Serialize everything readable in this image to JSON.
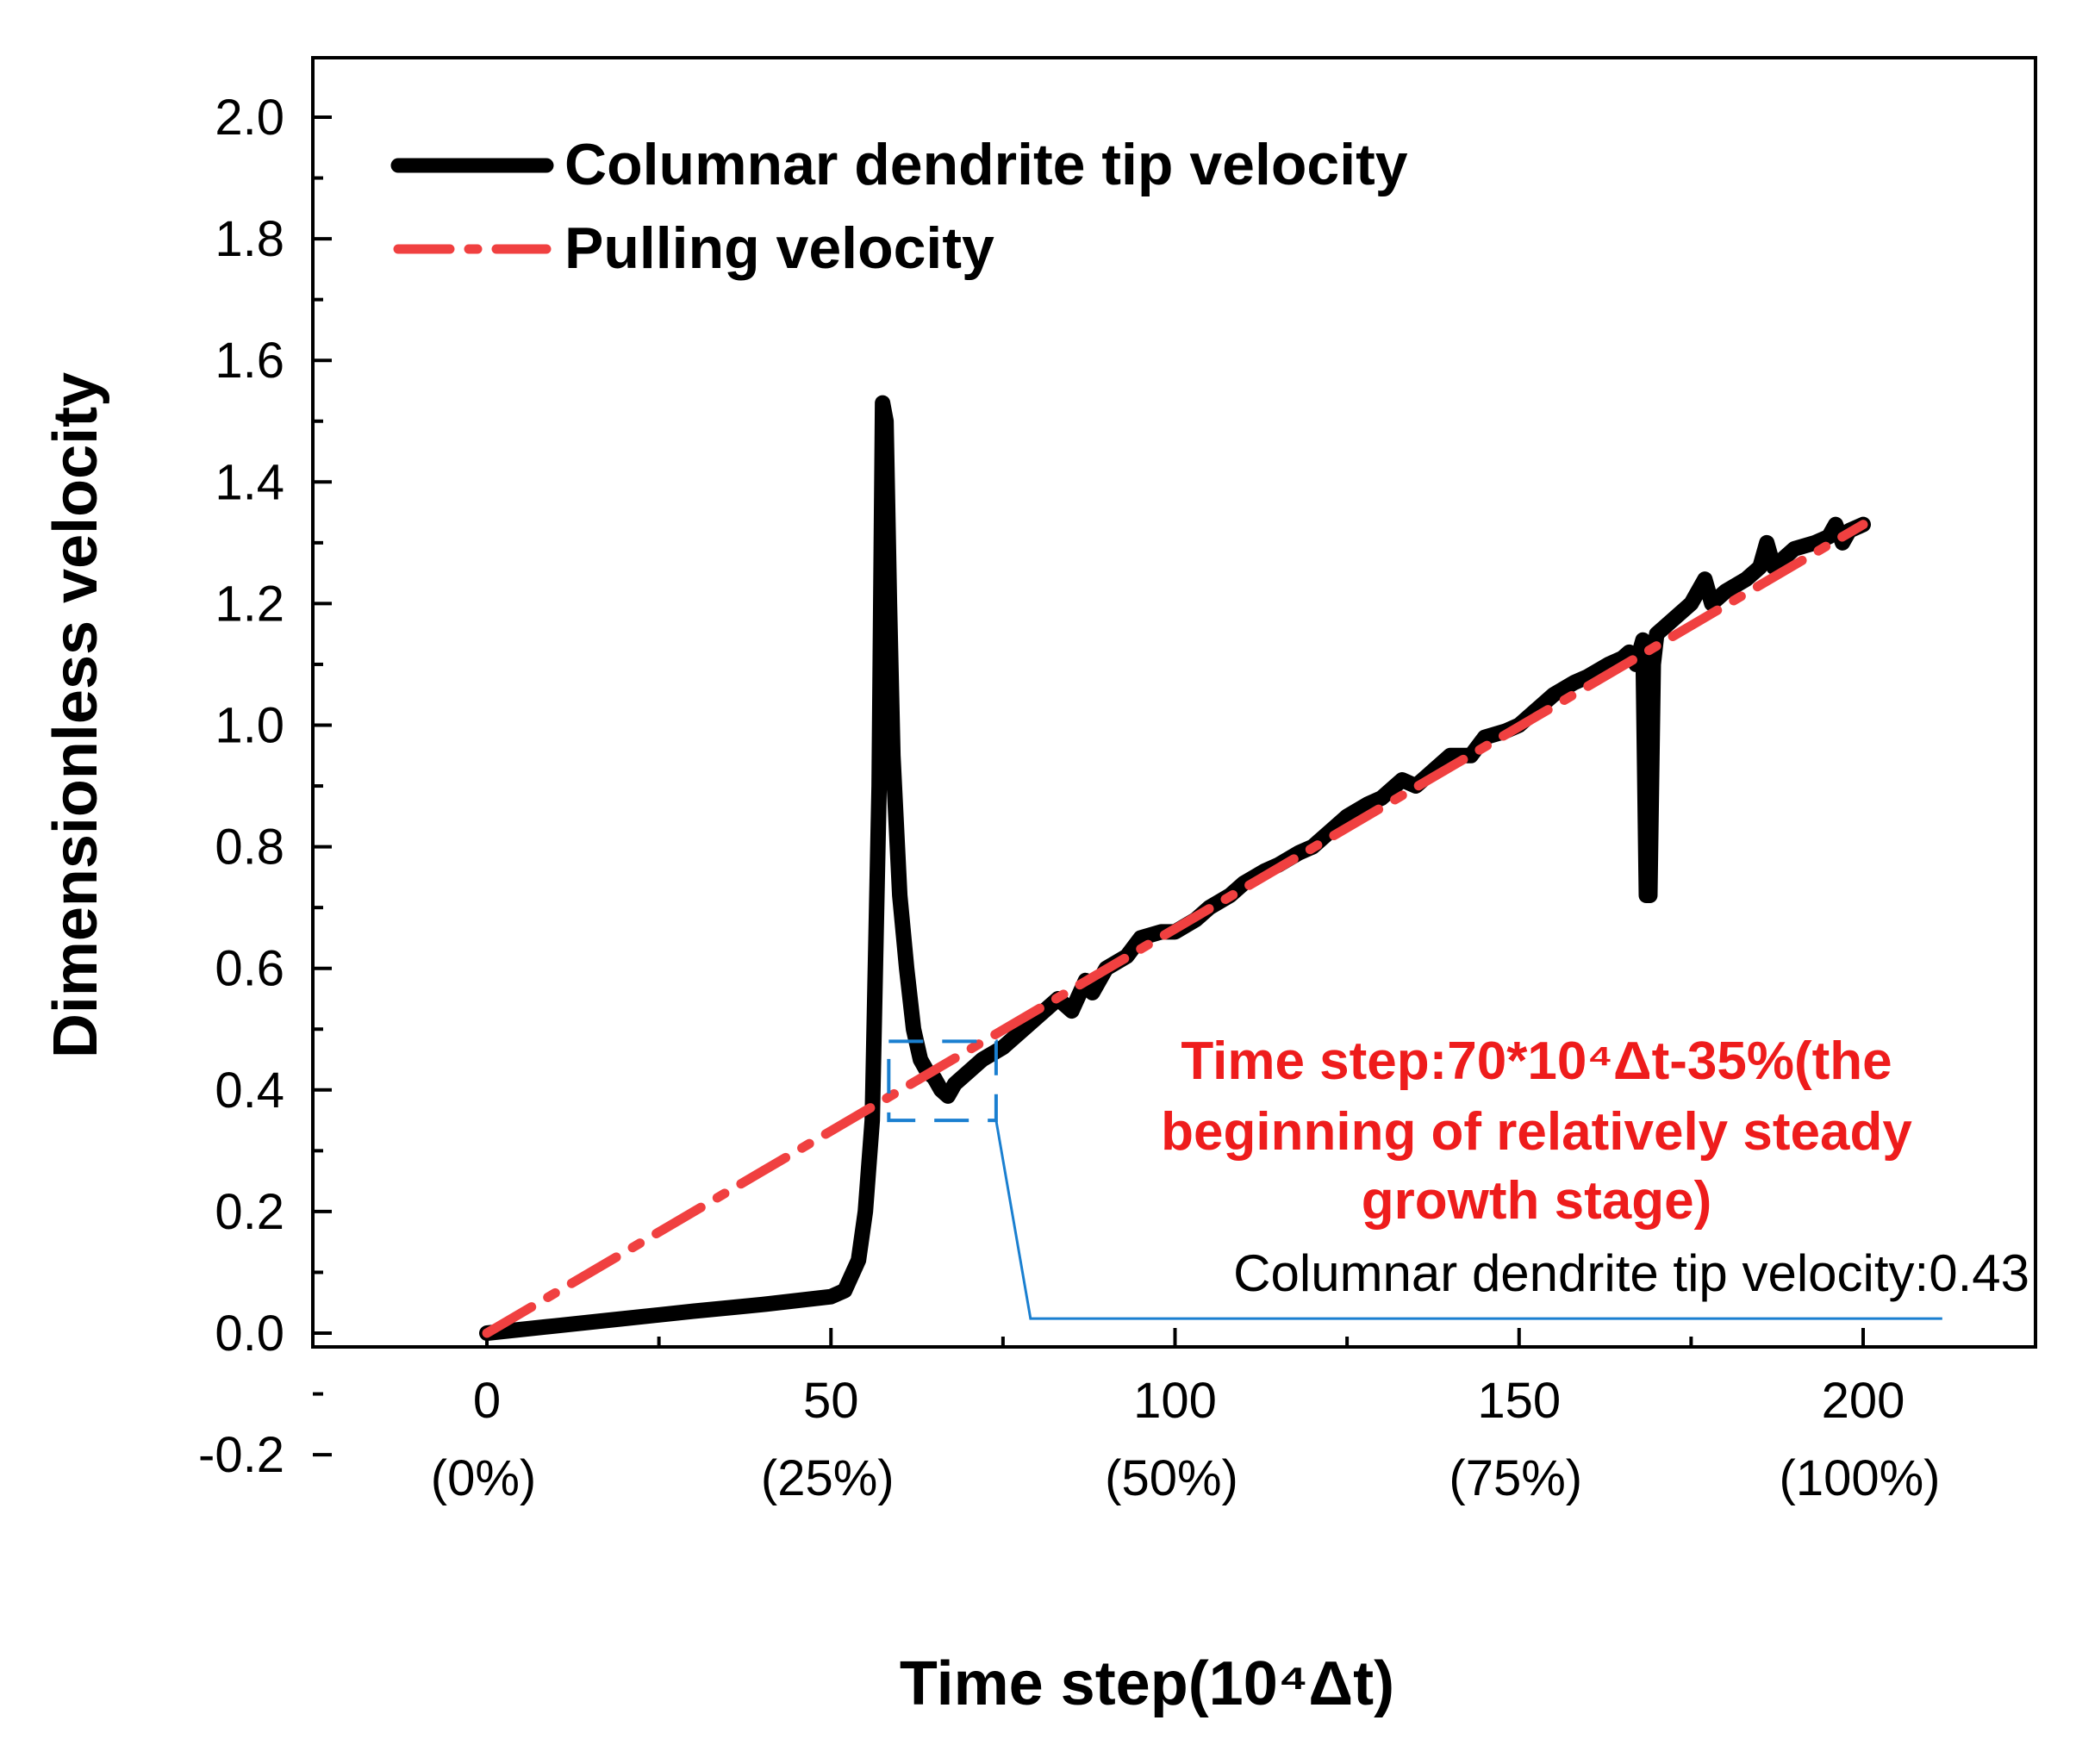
{
  "chart_data": {
    "type": "line",
    "xlabel": "Time step(10⁴Δt)",
    "ylabel": "Dimensionless velocity",
    "xlim": [
      -25,
      225
    ],
    "ylim": [
      -0.2,
      2.05
    ],
    "x_ticks": [
      0,
      50,
      100,
      150,
      200
    ],
    "x_tick_labels": [
      "0",
      "50",
      "100",
      "150",
      "200"
    ],
    "x_tick_sublabels": [
      "(0%)",
      "(25%)",
      "(50%)",
      "(75%)",
      "(100%)"
    ],
    "y_ticks": [
      -0.2,
      0.0,
      0.2,
      0.4,
      0.6,
      0.8,
      1.0,
      1.2,
      1.4,
      1.6,
      1.8,
      2.0
    ],
    "y_tick_labels": [
      "-0.2",
      "0.0",
      "0.2",
      "0.4",
      "0.6",
      "0.8",
      "1.0",
      "1.2",
      "1.4",
      "1.6",
      "1.8",
      "2.0"
    ],
    "grid": false,
    "legend_position": "top-left",
    "series": [
      {
        "name": "Columnar dendrite tip velocity",
        "color": "#000000",
        "style": "solid",
        "x": [
          0,
          10,
          20,
          30,
          40,
          50,
          52,
          54,
          55,
          56,
          57,
          57.5,
          58,
          58.5,
          59,
          60,
          61,
          62,
          63,
          64,
          65,
          66,
          67,
          68,
          70,
          72,
          75,
          78,
          80,
          83,
          85,
          87,
          88,
          90,
          93,
          95,
          98,
          100,
          103,
          105,
          108,
          110,
          113,
          115,
          118,
          120,
          123,
          125,
          128,
          130,
          133,
          135,
          138,
          140,
          143,
          145,
          148,
          150,
          153,
          155,
          158,
          160,
          163,
          165,
          166,
          167,
          168,
          168.5,
          169,
          169.5,
          170,
          171,
          173,
          175,
          177,
          178,
          180,
          183,
          185,
          186,
          187,
          190,
          193,
          195,
          196,
          197,
          198,
          200
        ],
        "y": [
          0,
          0.012,
          0.024,
          0.036,
          0.047,
          0.06,
          0.07,
          0.12,
          0.2,
          0.35,
          0.9,
          1.53,
          1.5,
          1.2,
          0.95,
          0.72,
          0.6,
          0.5,
          0.45,
          0.43,
          0.42,
          0.4,
          0.39,
          0.41,
          0.43,
          0.45,
          0.47,
          0.5,
          0.52,
          0.55,
          0.53,
          0.58,
          0.56,
          0.6,
          0.62,
          0.65,
          0.66,
          0.66,
          0.68,
          0.7,
          0.72,
          0.74,
          0.76,
          0.77,
          0.79,
          0.8,
          0.83,
          0.85,
          0.87,
          0.88,
          0.91,
          0.9,
          0.93,
          0.95,
          0.95,
          0.98,
          0.99,
          1.0,
          1.03,
          1.05,
          1.07,
          1.08,
          1.1,
          1.11,
          1.12,
          1.1,
          1.14,
          0.72,
          0.72,
          1.1,
          1.15,
          1.16,
          1.18,
          1.2,
          1.24,
          1.2,
          1.22,
          1.24,
          1.26,
          1.3,
          1.26,
          1.29,
          1.3,
          1.31,
          1.33,
          1.3,
          1.32,
          1.33
        ]
      },
      {
        "name": "Pulling velocity",
        "color": "#f04040",
        "style": "dash-dot",
        "x": [
          0,
          200
        ],
        "y": [
          0,
          1.33
        ]
      }
    ],
    "annotations": {
      "red_lines": [
        "Time step:70*10⁴Δt-35%(the",
        "beginning of relatively steady",
        "growth stage)"
      ],
      "red_color": "#ee1c1c",
      "black_text": "Columnar dendrite tip velocity:0.43",
      "highlight_box": {
        "x_range": [
          58.4,
          74
        ],
        "y_range": [
          0.35,
          0.48
        ],
        "color": "#1a7fd0"
      },
      "leader_line": {
        "x": [
          74,
          79,
          211.5
        ],
        "y": [
          0.35,
          0.024,
          0.024
        ]
      }
    }
  }
}
